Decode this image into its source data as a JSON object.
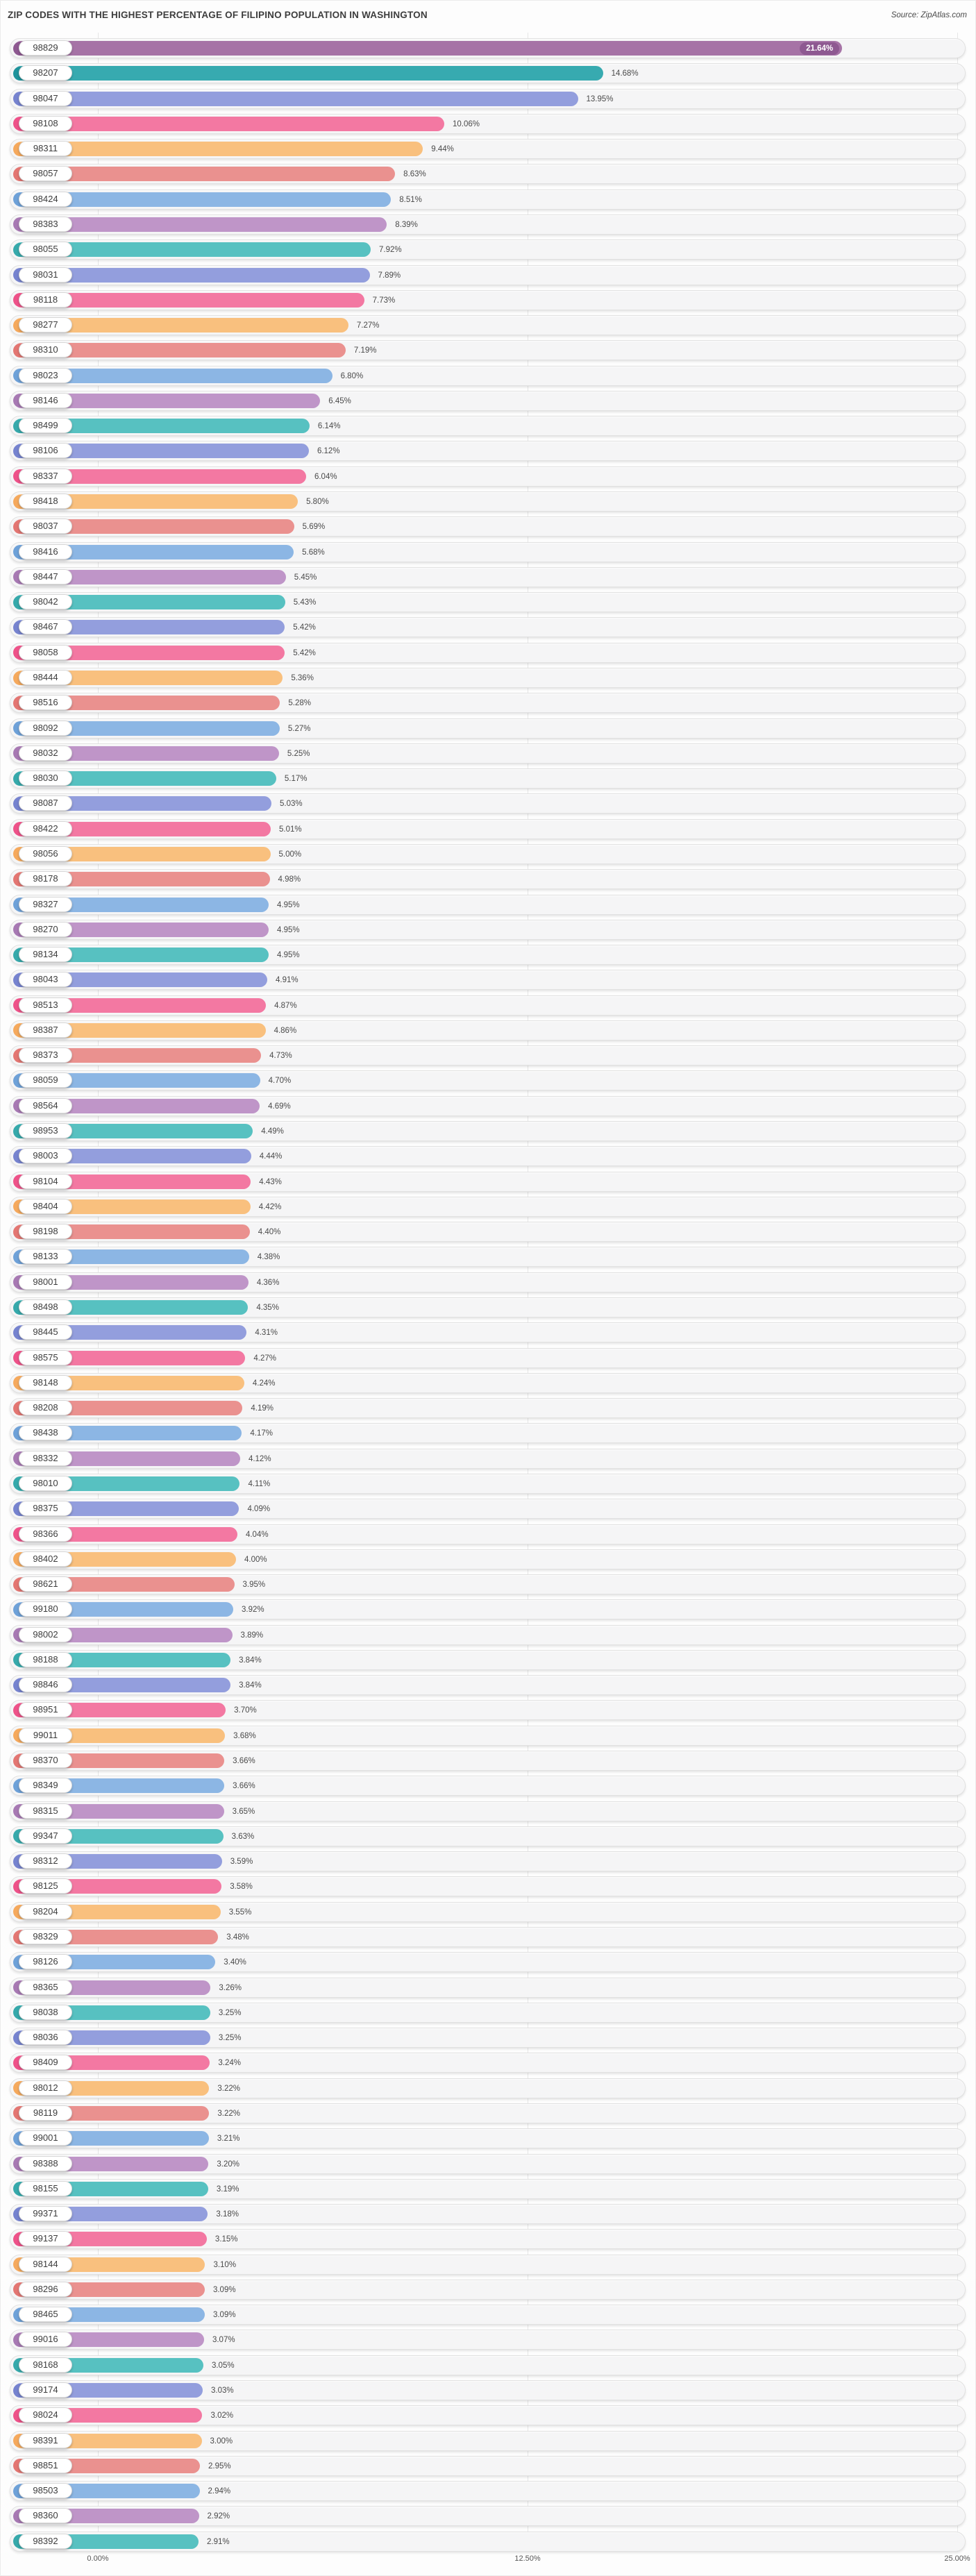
{
  "title": "ZIP CODES WITH THE HIGHEST PERCENTAGE OF FILIPINO POPULATION IN WASHINGTON",
  "source": {
    "text": "Source: ZipAtlas.com"
  },
  "x_axis": {
    "tick_labels": [
      "0.00%",
      "12.50%",
      "25.00%"
    ]
  },
  "palette": {
    "plum": {
      "fill": "#a673a6",
      "cap": "#8e5991"
    },
    "darkteal": {
      "fill": "#37aab0",
      "cap": "#1f939b"
    },
    "teal": {
      "fill": "#57c1c1",
      "cap": "#36a9ab"
    },
    "periwinkle": {
      "fill": "#939edd",
      "cap": "#7683cf"
    },
    "pink": {
      "fill": "#f378a2",
      "cap": "#ee5289"
    },
    "orange": {
      "fill": "#f9c07e",
      "cap": "#f5a95d"
    },
    "salmon": {
      "fill": "#ea918f",
      "cap": "#e37672"
    },
    "blue": {
      "fill": "#8cb6e4",
      "cap": "#6ea1d8"
    },
    "lavender": {
      "fill": "#bf95c8",
      "cap": "#a779b3"
    }
  },
  "chart_data": {
    "type": "bar",
    "orientation": "horizontal",
    "title": "ZIP CODES WITH THE HIGHEST PERCENTAGE OF FILIPINO POPULATION IN WASHINGTON",
    "unit": "%",
    "xlim": [
      0,
      25
    ],
    "tick_values": [
      0,
      12.5,
      25
    ],
    "grid": true,
    "rows": [
      {
        "zip": "98829",
        "value": 21.64,
        "label": "21.64%",
        "color": "plum",
        "value_inside": true
      },
      {
        "zip": "98207",
        "value": 14.68,
        "label": "14.68%",
        "color": "darkteal"
      },
      {
        "zip": "98047",
        "value": 13.95,
        "label": "13.95%",
        "color": "periwinkle"
      },
      {
        "zip": "98108",
        "value": 10.06,
        "label": "10.06%",
        "color": "pink"
      },
      {
        "zip": "98311",
        "value": 9.44,
        "label": "9.44%",
        "color": "orange"
      },
      {
        "zip": "98057",
        "value": 8.63,
        "label": "8.63%",
        "color": "salmon"
      },
      {
        "zip": "98424",
        "value": 8.51,
        "label": "8.51%",
        "color": "blue"
      },
      {
        "zip": "98383",
        "value": 8.39,
        "label": "8.39%",
        "color": "lavender"
      },
      {
        "zip": "98055",
        "value": 7.92,
        "label": "7.92%",
        "color": "teal"
      },
      {
        "zip": "98031",
        "value": 7.89,
        "label": "7.89%",
        "color": "periwinkle"
      },
      {
        "zip": "98118",
        "value": 7.73,
        "label": "7.73%",
        "color": "pink"
      },
      {
        "zip": "98277",
        "value": 7.27,
        "label": "7.27%",
        "color": "orange"
      },
      {
        "zip": "98310",
        "value": 7.19,
        "label": "7.19%",
        "color": "salmon"
      },
      {
        "zip": "98023",
        "value": 6.8,
        "label": "6.80%",
        "color": "blue"
      },
      {
        "zip": "98146",
        "value": 6.45,
        "label": "6.45%",
        "color": "lavender"
      },
      {
        "zip": "98499",
        "value": 6.14,
        "label": "6.14%",
        "color": "teal"
      },
      {
        "zip": "98106",
        "value": 6.12,
        "label": "6.12%",
        "color": "periwinkle"
      },
      {
        "zip": "98337",
        "value": 6.04,
        "label": "6.04%",
        "color": "pink"
      },
      {
        "zip": "98418",
        "value": 5.8,
        "label": "5.80%",
        "color": "orange"
      },
      {
        "zip": "98037",
        "value": 5.69,
        "label": "5.69%",
        "color": "salmon"
      },
      {
        "zip": "98416",
        "value": 5.68,
        "label": "5.68%",
        "color": "blue"
      },
      {
        "zip": "98447",
        "value": 5.45,
        "label": "5.45%",
        "color": "lavender"
      },
      {
        "zip": "98042",
        "value": 5.43,
        "label": "5.43%",
        "color": "teal"
      },
      {
        "zip": "98467",
        "value": 5.42,
        "label": "5.42%",
        "color": "periwinkle"
      },
      {
        "zip": "98058",
        "value": 5.42,
        "label": "5.42%",
        "color": "pink"
      },
      {
        "zip": "98444",
        "value": 5.36,
        "label": "5.36%",
        "color": "orange"
      },
      {
        "zip": "98516",
        "value": 5.28,
        "label": "5.28%",
        "color": "salmon"
      },
      {
        "zip": "98092",
        "value": 5.27,
        "label": "5.27%",
        "color": "blue"
      },
      {
        "zip": "98032",
        "value": 5.25,
        "label": "5.25%",
        "color": "lavender"
      },
      {
        "zip": "98030",
        "value": 5.17,
        "label": "5.17%",
        "color": "teal"
      },
      {
        "zip": "98087",
        "value": 5.03,
        "label": "5.03%",
        "color": "periwinkle"
      },
      {
        "zip": "98422",
        "value": 5.01,
        "label": "5.01%",
        "color": "pink"
      },
      {
        "zip": "98056",
        "value": 5.0,
        "label": "5.00%",
        "color": "orange"
      },
      {
        "zip": "98178",
        "value": 4.98,
        "label": "4.98%",
        "color": "salmon"
      },
      {
        "zip": "98327",
        "value": 4.95,
        "label": "4.95%",
        "color": "blue"
      },
      {
        "zip": "98270",
        "value": 4.95,
        "label": "4.95%",
        "color": "lavender"
      },
      {
        "zip": "98134",
        "value": 4.95,
        "label": "4.95%",
        "color": "teal"
      },
      {
        "zip": "98043",
        "value": 4.91,
        "label": "4.91%",
        "color": "periwinkle"
      },
      {
        "zip": "98513",
        "value": 4.87,
        "label": "4.87%",
        "color": "pink"
      },
      {
        "zip": "98387",
        "value": 4.86,
        "label": "4.86%",
        "color": "orange"
      },
      {
        "zip": "98373",
        "value": 4.73,
        "label": "4.73%",
        "color": "salmon"
      },
      {
        "zip": "98059",
        "value": 4.7,
        "label": "4.70%",
        "color": "blue"
      },
      {
        "zip": "98564",
        "value": 4.69,
        "label": "4.69%",
        "color": "lavender"
      },
      {
        "zip": "98953",
        "value": 4.49,
        "label": "4.49%",
        "color": "teal"
      },
      {
        "zip": "98003",
        "value": 4.44,
        "label": "4.44%",
        "color": "periwinkle"
      },
      {
        "zip": "98104",
        "value": 4.43,
        "label": "4.43%",
        "color": "pink"
      },
      {
        "zip": "98404",
        "value": 4.42,
        "label": "4.42%",
        "color": "orange"
      },
      {
        "zip": "98198",
        "value": 4.4,
        "label": "4.40%",
        "color": "salmon"
      },
      {
        "zip": "98133",
        "value": 4.38,
        "label": "4.38%",
        "color": "blue"
      },
      {
        "zip": "98001",
        "value": 4.36,
        "label": "4.36%",
        "color": "lavender"
      },
      {
        "zip": "98498",
        "value": 4.35,
        "label": "4.35%",
        "color": "teal"
      },
      {
        "zip": "98445",
        "value": 4.31,
        "label": "4.31%",
        "color": "periwinkle"
      },
      {
        "zip": "98575",
        "value": 4.27,
        "label": "4.27%",
        "color": "pink"
      },
      {
        "zip": "98148",
        "value": 4.24,
        "label": "4.24%",
        "color": "orange"
      },
      {
        "zip": "98208",
        "value": 4.19,
        "label": "4.19%",
        "color": "salmon"
      },
      {
        "zip": "98438",
        "value": 4.17,
        "label": "4.17%",
        "color": "blue"
      },
      {
        "zip": "98332",
        "value": 4.12,
        "label": "4.12%",
        "color": "lavender"
      },
      {
        "zip": "98010",
        "value": 4.11,
        "label": "4.11%",
        "color": "teal"
      },
      {
        "zip": "98375",
        "value": 4.09,
        "label": "4.09%",
        "color": "periwinkle"
      },
      {
        "zip": "98366",
        "value": 4.04,
        "label": "4.04%",
        "color": "pink"
      },
      {
        "zip": "98402",
        "value": 4.0,
        "label": "4.00%",
        "color": "orange"
      },
      {
        "zip": "98621",
        "value": 3.95,
        "label": "3.95%",
        "color": "salmon"
      },
      {
        "zip": "99180",
        "value": 3.92,
        "label": "3.92%",
        "color": "blue"
      },
      {
        "zip": "98002",
        "value": 3.89,
        "label": "3.89%",
        "color": "lavender"
      },
      {
        "zip": "98188",
        "value": 3.84,
        "label": "3.84%",
        "color": "teal"
      },
      {
        "zip": "98846",
        "value": 3.84,
        "label": "3.84%",
        "color": "periwinkle"
      },
      {
        "zip": "98951",
        "value": 3.7,
        "label": "3.70%",
        "color": "pink"
      },
      {
        "zip": "99011",
        "value": 3.68,
        "label": "3.68%",
        "color": "orange"
      },
      {
        "zip": "98370",
        "value": 3.66,
        "label": "3.66%",
        "color": "salmon"
      },
      {
        "zip": "98349",
        "value": 3.66,
        "label": "3.66%",
        "color": "blue"
      },
      {
        "zip": "98315",
        "value": 3.65,
        "label": "3.65%",
        "color": "lavender"
      },
      {
        "zip": "99347",
        "value": 3.63,
        "label": "3.63%",
        "color": "teal"
      },
      {
        "zip": "98312",
        "value": 3.59,
        "label": "3.59%",
        "color": "periwinkle"
      },
      {
        "zip": "98125",
        "value": 3.58,
        "label": "3.58%",
        "color": "pink"
      },
      {
        "zip": "98204",
        "value": 3.55,
        "label": "3.55%",
        "color": "orange"
      },
      {
        "zip": "98329",
        "value": 3.48,
        "label": "3.48%",
        "color": "salmon"
      },
      {
        "zip": "98126",
        "value": 3.4,
        "label": "3.40%",
        "color": "blue"
      },
      {
        "zip": "98365",
        "value": 3.26,
        "label": "3.26%",
        "color": "lavender"
      },
      {
        "zip": "98038",
        "value": 3.25,
        "label": "3.25%",
        "color": "teal"
      },
      {
        "zip": "98036",
        "value": 3.25,
        "label": "3.25%",
        "color": "periwinkle"
      },
      {
        "zip": "98409",
        "value": 3.24,
        "label": "3.24%",
        "color": "pink"
      },
      {
        "zip": "98012",
        "value": 3.22,
        "label": "3.22%",
        "color": "orange"
      },
      {
        "zip": "98119",
        "value": 3.22,
        "label": "3.22%",
        "color": "salmon"
      },
      {
        "zip": "99001",
        "value": 3.21,
        "label": "3.21%",
        "color": "blue"
      },
      {
        "zip": "98388",
        "value": 3.2,
        "label": "3.20%",
        "color": "lavender"
      },
      {
        "zip": "98155",
        "value": 3.19,
        "label": "3.19%",
        "color": "teal"
      },
      {
        "zip": "99371",
        "value": 3.18,
        "label": "3.18%",
        "color": "periwinkle"
      },
      {
        "zip": "99137",
        "value": 3.15,
        "label": "3.15%",
        "color": "pink"
      },
      {
        "zip": "98144",
        "value": 3.1,
        "label": "3.10%",
        "color": "orange"
      },
      {
        "zip": "98296",
        "value": 3.09,
        "label": "3.09%",
        "color": "salmon"
      },
      {
        "zip": "98465",
        "value": 3.09,
        "label": "3.09%",
        "color": "blue"
      },
      {
        "zip": "99016",
        "value": 3.07,
        "label": "3.07%",
        "color": "lavender"
      },
      {
        "zip": "98168",
        "value": 3.05,
        "label": "3.05%",
        "color": "teal"
      },
      {
        "zip": "99174",
        "value": 3.03,
        "label": "3.03%",
        "color": "periwinkle"
      },
      {
        "zip": "98024",
        "value": 3.02,
        "label": "3.02%",
        "color": "pink"
      },
      {
        "zip": "98391",
        "value": 3.0,
        "label": "3.00%",
        "color": "orange"
      },
      {
        "zip": "98851",
        "value": 2.95,
        "label": "2.95%",
        "color": "salmon"
      },
      {
        "zip": "98503",
        "value": 2.94,
        "label": "2.94%",
        "color": "blue"
      },
      {
        "zip": "98360",
        "value": 2.92,
        "label": "2.92%",
        "color": "lavender"
      },
      {
        "zip": "98392",
        "value": 2.91,
        "label": "2.91%",
        "color": "teal"
      }
    ]
  }
}
